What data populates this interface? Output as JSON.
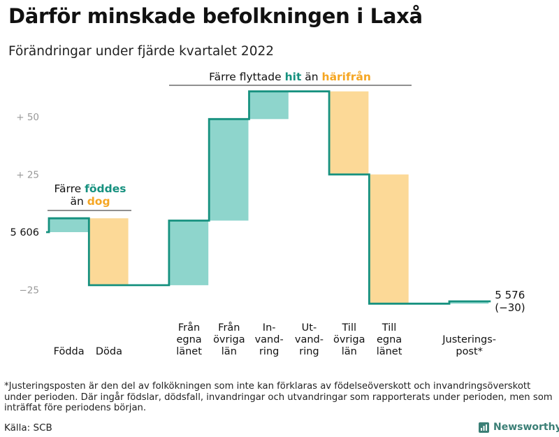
{
  "title": "Därför minskade befolkningen i Laxå",
  "subtitle": "Förändringar under fjärde kvartalet 2022",
  "footnote": "*Justeringsposten är den del av folkökningen som inte kan förklaras av födelseöverskott och invandringsöverskott under perioden. Där ingår födslar, dödsfall, invandringar och utvandringar som rapporterats under perioden, men som inträffat före periodens början.",
  "source": "Källa: SCB",
  "brand": "Newsworthy",
  "colors": {
    "line": "#16917f",
    "increase": "#8ed5cc",
    "decrease": "#fcd997",
    "accent_green": "#16917f",
    "accent_orange": "#f5a623"
  },
  "chart_data": {
    "type": "waterfall",
    "start_value": 5606,
    "end_value": 5576,
    "start_label": "5 606",
    "end_label": "5 576",
    "end_change_label": "(−30)",
    "y_axis": {
      "ticks": [
        {
          "value": 50,
          "label": "+ 50"
        },
        {
          "value": 25,
          "label": "+ 25"
        },
        {
          "value": -25,
          "label": "−25"
        }
      ],
      "range": [
        -36,
        62
      ]
    },
    "steps": [
      {
        "label_lines": [
          "Födda"
        ],
        "change": 6
      },
      {
        "label_lines": [
          "Döda"
        ],
        "change": -29
      },
      {
        "label_lines": [],
        "change": 0
      },
      {
        "label_lines": [
          "Från",
          "egna",
          "länet"
        ],
        "change": 28
      },
      {
        "label_lines": [
          "Från",
          "övriga",
          "län"
        ],
        "change": 44
      },
      {
        "label_lines": [
          "In-",
          "vand-",
          "ring"
        ],
        "change": 12
      },
      {
        "label_lines": [
          "Ut-",
          "vand-",
          "ring"
        ],
        "change": 0
      },
      {
        "label_lines": [
          "Till",
          "övriga",
          "län"
        ],
        "change": -36
      },
      {
        "label_lines": [
          "Till",
          "egna",
          "länet"
        ],
        "change": -56
      },
      {
        "label_lines": [],
        "change": 0
      },
      {
        "label_lines": [
          "Justerings-",
          "post*"
        ],
        "change": 1
      }
    ],
    "annotations": {
      "births": {
        "line1_pre": "Färre ",
        "line1_hl": "föddes",
        "line2_pre": "än ",
        "line2_hl": "dog"
      },
      "migration": {
        "pre": "Färre flyttade ",
        "hl1": "hit",
        "mid": " än ",
        "hl2": "härifrån"
      }
    }
  }
}
